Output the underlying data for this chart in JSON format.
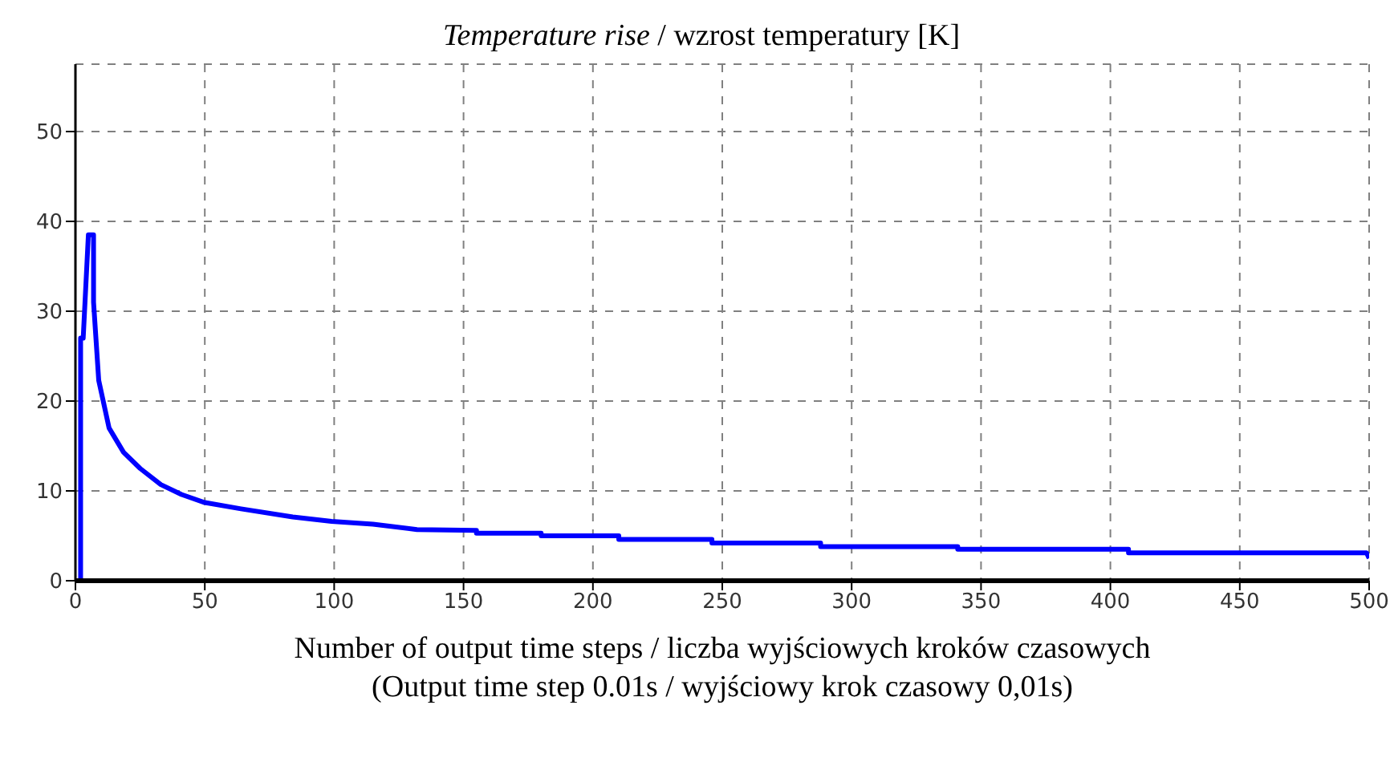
{
  "chart_data": {
    "type": "line",
    "title": "Temperature rise / wzrost temperatury [K]",
    "xlabel": "Number of output time steps / liczba wyjściowych kroków czasowych\n(Output time step 0.01s / wyjściowy krok czasowy 0,01s)",
    "x": [
      2,
      2,
      3,
      5,
      7,
      7,
      9,
      13,
      18.6,
      25,
      33,
      41,
      50,
      64,
      84,
      99,
      115,
      132,
      155,
      155,
      180,
      180,
      210,
      210,
      246,
      246,
      288,
      288,
      341,
      341,
      407,
      407,
      499,
      500
    ],
    "series": [
      {
        "color": "#0000ff",
        "values": [
          0,
          27,
          27,
          38.5,
          38.5,
          31,
          22.3,
          17,
          14.3,
          12.5,
          10.7,
          9.6,
          8.7,
          8.0,
          7.1,
          6.6,
          6.3,
          5.7,
          5.6,
          5.3,
          5.3,
          5.0,
          5.0,
          4.6,
          4.6,
          4.2,
          4.2,
          3.8,
          3.8,
          3.5,
          3.5,
          3.1,
          3.1,
          2.5
        ]
      }
    ],
    "xlim": [
      0,
      500
    ],
    "xticks": [
      0,
      50,
      100,
      150,
      200,
      250,
      300,
      350,
      400,
      450,
      500
    ],
    "ylim": [
      0,
      57.5
    ],
    "yticks": [
      0,
      10,
      20,
      30,
      40,
      50
    ],
    "grid": true,
    "legend": false,
    "marker": "none",
    "line_style": "solid"
  }
}
